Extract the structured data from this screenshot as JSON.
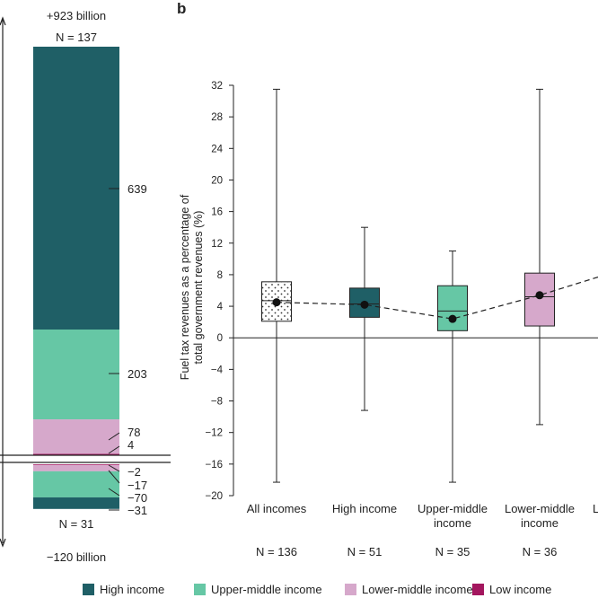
{
  "chart_data": [
    {
      "type": "bar",
      "stacked": true,
      "top": {
        "total_label": "+923 billion",
        "n_label": "N = 137",
        "segments": [
          {
            "group": "High income",
            "value": 639,
            "label": "639"
          },
          {
            "group": "Upper-middle income",
            "value": 203,
            "label": "203"
          },
          {
            "group": "Lower-middle income",
            "value": 78,
            "label": "78"
          },
          {
            "group": "Low income",
            "value": 4,
            "label": "4"
          }
        ]
      },
      "bottom": {
        "total_label": "−120 billion",
        "n_label": "N = 31",
        "segments": [
          {
            "group": "Low income",
            "value": -2,
            "label": "−2"
          },
          {
            "group": "Lower-middle income",
            "value": -17,
            "label": "−17"
          },
          {
            "group": "Upper-middle income",
            "value": -70,
            "label": "−70"
          },
          {
            "group": "High income",
            "value": -31,
            "label": "−31"
          }
        ]
      }
    },
    {
      "type": "box",
      "panel_label": "b",
      "ylabel": "Fuel tax revenues as a percentage of total government revenues (%)",
      "ylabel_lines": [
        "Fuel tax revenues as a percentage of",
        "total government revenues (%)"
      ],
      "ylim": [
        -20,
        32
      ],
      "yticks": [
        "32",
        "28",
        "24",
        "20",
        "16",
        "12",
        "8",
        "4",
        "0",
        "−4",
        "−8",
        "−12",
        "−16",
        "−20"
      ],
      "ytick_values": [
        32,
        28,
        24,
        20,
        16,
        12,
        8,
        4,
        0,
        -4,
        -8,
        -12,
        -16,
        -20
      ],
      "groups": [
        {
          "label_lines": [
            "All incomes"
          ],
          "n_label": "N = 136",
          "fill": "dotted",
          "whisker_low": -18.3,
          "q1": 2.1,
          "median": 4.7,
          "q3": 7.1,
          "whisker_high": 31.5,
          "mean": 4.5
        },
        {
          "label_lines": [
            "High income"
          ],
          "n_label": "N = 51",
          "fill": "#1f5f66",
          "whisker_low": -9.2,
          "q1": 2.6,
          "median": 4.3,
          "q3": 6.3,
          "whisker_high": 14.0,
          "mean": 4.2
        },
        {
          "label_lines": [
            "Upper-middle",
            "income"
          ],
          "n_label": "N = 35",
          "fill": "#66c7a5",
          "whisker_low": -18.3,
          "q1": 0.9,
          "median": 3.4,
          "q3": 6.6,
          "whisker_high": 11.0,
          "mean": 2.4
        },
        {
          "label_lines": [
            "Lower-middle",
            "income"
          ],
          "n_label": "N = 36",
          "fill": "#d6a8cb",
          "whisker_low": -11.0,
          "q1": 1.5,
          "median": 5.2,
          "q3": 8.2,
          "whisker_high": 31.5,
          "mean": 5.4
        }
      ],
      "partial_next_label": "L",
      "trend_end_value": 7.7
    }
  ],
  "legend": [
    {
      "label": "High income",
      "color": "#1f5f66"
    },
    {
      "label": "Upper-middle income",
      "color": "#66c7a5"
    },
    {
      "label": "Lower-middle income",
      "color": "#d6a8cb"
    },
    {
      "label": "Low income",
      "color": "#a3165e"
    }
  ],
  "colors": {
    "High income": "#1f5f66",
    "Upper-middle income": "#66c7a5",
    "Lower-middle income": "#d6a8cb",
    "Low income": "#a3165e"
  }
}
